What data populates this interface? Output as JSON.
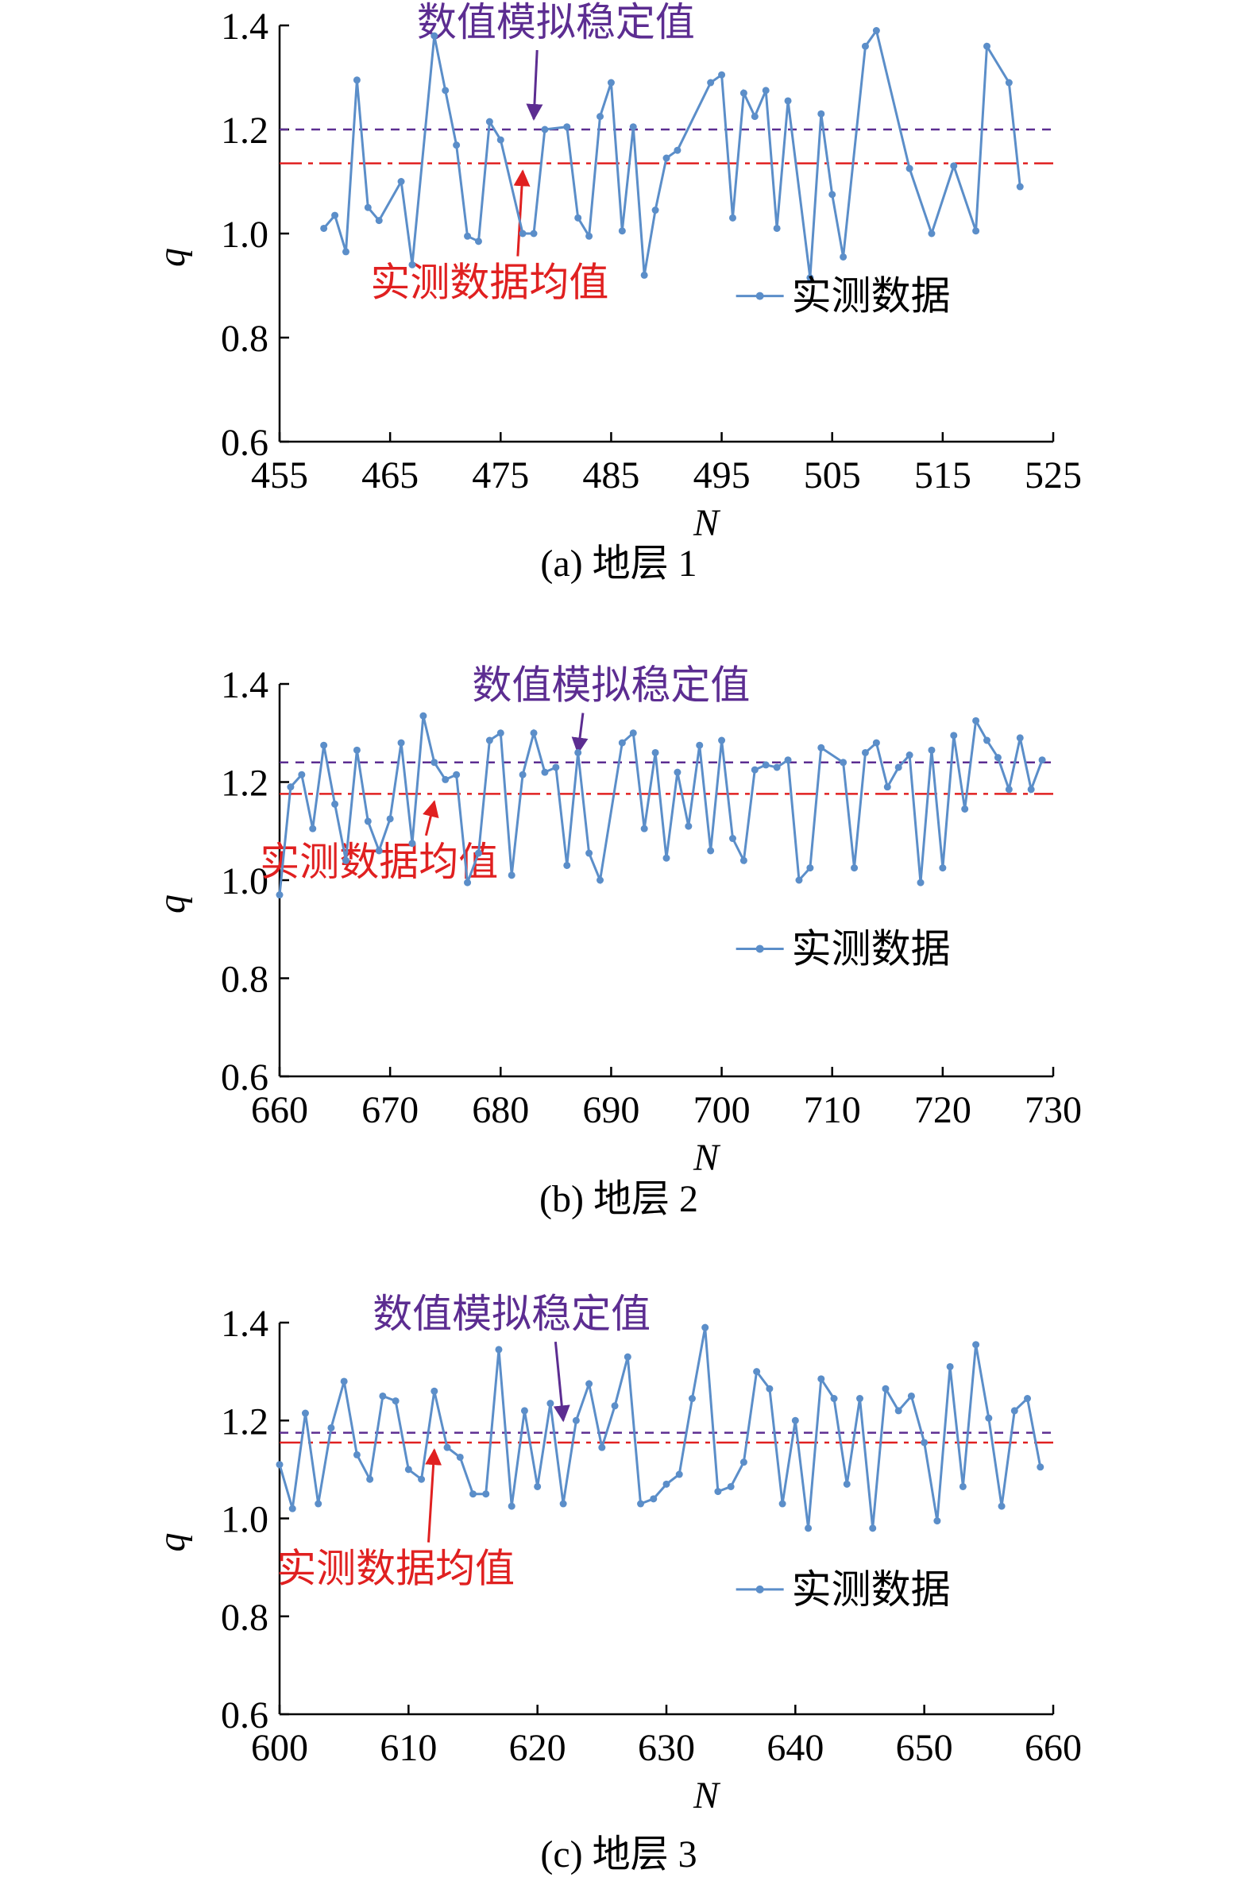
{
  "chart_data": [
    {
      "type": "line",
      "caption": "(a) 地层 1",
      "xlabel": "N",
      "ylabel": "q",
      "xlim": [
        455,
        525
      ],
      "ylim": [
        0.6,
        1.4
      ],
      "xticks": [
        455,
        465,
        475,
        485,
        495,
        505,
        515,
        525
      ],
      "yticks": [
        0.6,
        0.8,
        1.0,
        1.2,
        1.4
      ],
      "ytick_labels": [
        "0.6",
        "0.8",
        "1.0",
        "1.2",
        "1.4"
      ],
      "legend": "实测数据",
      "legend_position": "right",
      "colors": {
        "series": "#5b8ec9",
        "sim": "#5c2d91",
        "mean": "#e02020"
      },
      "hlines": [
        {
          "label": "数值模拟稳定值",
          "value": 1.2,
          "style": "dashed",
          "color": "#5c2d91",
          "annotation_x": 480,
          "annotation_y": 1.38,
          "arrow_to_x": 478,
          "arrow_to_y": 1.22
        },
        {
          "label": "实测数据均值",
          "value": 1.135,
          "style": "dashdot",
          "color": "#e02020",
          "annotation_x": 474,
          "annotation_y": 0.88,
          "arrow_to_x": 477,
          "arrow_to_y": 1.12
        }
      ],
      "series": [
        {
          "name": "实测数据",
          "x": [
            459,
            460,
            461,
            462,
            463,
            464,
            466,
            467,
            469,
            470,
            471,
            472,
            473,
            474,
            475,
            477,
            478,
            479,
            481,
            482,
            483,
            484,
            485,
            486,
            487,
            488,
            489,
            490,
            491,
            494,
            495,
            496,
            497,
            498,
            499,
            500,
            501,
            503,
            504,
            505,
            506,
            508,
            509,
            512,
            514,
            516,
            518,
            519,
            521,
            522
          ],
          "y": [
            1.01,
            1.035,
            0.965,
            1.295,
            1.05,
            1.025,
            1.1,
            0.94,
            1.38,
            1.275,
            1.17,
            0.995,
            0.985,
            1.215,
            1.18,
            1.0,
            1.0,
            1.2,
            1.205,
            1.03,
            0.995,
            1.225,
            1.29,
            1.005,
            1.205,
            0.92,
            1.045,
            1.145,
            1.16,
            1.29,
            1.305,
            1.03,
            1.27,
            1.225,
            1.275,
            1.01,
            1.255,
            0.915,
            1.23,
            1.075,
            0.955,
            1.36,
            1.39,
            1.125,
            1.0,
            1.13,
            1.005,
            1.36,
            1.29,
            1.09
          ]
        }
      ]
    },
    {
      "type": "line",
      "caption": "(b) 地层 2",
      "xlabel": "N",
      "ylabel": "q",
      "xlim": [
        660,
        730
      ],
      "ylim": [
        0.6,
        1.4
      ],
      "xticks": [
        660,
        670,
        680,
        690,
        700,
        710,
        720,
        730
      ],
      "yticks": [
        0.6,
        0.8,
        1.0,
        1.2,
        1.4
      ],
      "ytick_labels": [
        "0.6",
        "0.8",
        "1.0",
        "1.2",
        "1.4"
      ],
      "legend": "实测数据",
      "legend_position": "right",
      "colors": {
        "series": "#5b8ec9",
        "sim": "#5c2d91",
        "mean": "#e02020"
      },
      "hlines": [
        {
          "label": "数值模拟稳定值",
          "value": 1.24,
          "style": "dashed",
          "color": "#5c2d91",
          "annotation_x": 690,
          "annotation_y": 1.37,
          "arrow_to_x": 687,
          "arrow_to_y": 1.26
        },
        {
          "label": "实测数据均值",
          "value": 1.176,
          "style": "dashdot",
          "color": "#e02020",
          "annotation_x": 669,
          "annotation_y": 1.01,
          "arrow_to_x": 674,
          "arrow_to_y": 1.16
        }
      ],
      "series": [
        {
          "name": "实测数据",
          "x": [
            660,
            661,
            662,
            663,
            664,
            665,
            666,
            667,
            668,
            669,
            670,
            671,
            672,
            673,
            674,
            675,
            676,
            677,
            678,
            679,
            680,
            681,
            682,
            683,
            684,
            685,
            686,
            687,
            688,
            689,
            691,
            692,
            693,
            694,
            695,
            696,
            697,
            698,
            699,
            700,
            701,
            702,
            703,
            704,
            705,
            706,
            707,
            708,
            709,
            711,
            712,
            713,
            714,
            715,
            716,
            717,
            718,
            719,
            720,
            721,
            722,
            723,
            724,
            725,
            726,
            727,
            728,
            729
          ],
          "y": [
            0.97,
            1.19,
            1.215,
            1.105,
            1.275,
            1.155,
            1.04,
            1.265,
            1.12,
            1.06,
            1.125,
            1.28,
            1.075,
            1.335,
            1.24,
            1.205,
            1.215,
            0.995,
            1.055,
            1.285,
            1.3,
            1.01,
            1.215,
            1.3,
            1.22,
            1.23,
            1.03,
            1.26,
            1.055,
            1.0,
            1.28,
            1.3,
            1.105,
            1.26,
            1.045,
            1.22,
            1.11,
            1.275,
            1.06,
            1.285,
            1.085,
            1.04,
            1.225,
            1.235,
            1.23,
            1.245,
            1.0,
            1.025,
            1.27,
            1.24,
            1.025,
            1.26,
            1.28,
            1.19,
            1.23,
            1.255,
            0.995,
            1.265,
            1.025,
            1.295,
            1.145,
            1.325,
            1.285,
            1.25,
            1.185,
            1.29,
            1.185,
            1.245
          ]
        }
      ]
    },
    {
      "type": "line",
      "caption": "(c) 地层 3",
      "xlabel": "N",
      "ylabel": "q",
      "xlim": [
        600,
        660
      ],
      "ylim": [
        0.6,
        1.4
      ],
      "xticks": [
        600,
        610,
        620,
        630,
        640,
        650,
        660
      ],
      "yticks": [
        0.6,
        0.8,
        1.0,
        1.2,
        1.4
      ],
      "ytick_labels": [
        "0.6",
        "0.8",
        "1.0",
        "1.2",
        "1.4"
      ],
      "legend": "实测数据",
      "legend_position": "right",
      "colors": {
        "series": "#5b8ec9",
        "sim": "#5c2d91",
        "mean": "#e02020"
      },
      "hlines": [
        {
          "label": "数值模拟稳定值",
          "value": 1.175,
          "style": "dashed",
          "color": "#5c2d91",
          "annotation_x": 618,
          "annotation_y": 1.39,
          "arrow_to_x": 622,
          "arrow_to_y": 1.2
        },
        {
          "label": "实测数据均值",
          "value": 1.155,
          "style": "dashdot",
          "color": "#e02020",
          "annotation_x": 609,
          "annotation_y": 0.87,
          "arrow_to_x": 612,
          "arrow_to_y": 1.14
        }
      ],
      "series": [
        {
          "name": "实测数据",
          "x": [
            600,
            601,
            602,
            603,
            604,
            605,
            606,
            607,
            608,
            609,
            610,
            611,
            612,
            613,
            614,
            615,
            616,
            617,
            618,
            619,
            620,
            621,
            622,
            623,
            624,
            625,
            626,
            627,
            628,
            629,
            630,
            631,
            632,
            633,
            634,
            635,
            636,
            637,
            638,
            639,
            640,
            641,
            642,
            643,
            644,
            645,
            646,
            647,
            648,
            649,
            650,
            651,
            652,
            653,
            654,
            655,
            656,
            657,
            658,
            659
          ],
          "y": [
            1.11,
            1.02,
            1.215,
            1.03,
            1.185,
            1.28,
            1.13,
            1.08,
            1.25,
            1.24,
            1.1,
            1.08,
            1.26,
            1.145,
            1.125,
            1.05,
            1.05,
            1.345,
            1.025,
            1.22,
            1.065,
            1.235,
            1.03,
            1.2,
            1.275,
            1.145,
            1.23,
            1.33,
            1.03,
            1.04,
            1.07,
            1.09,
            1.245,
            1.39,
            1.055,
            1.065,
            1.115,
            1.3,
            1.265,
            1.03,
            1.2,
            0.98,
            1.285,
            1.245,
            1.07,
            1.245,
            0.98,
            1.265,
            1.22,
            1.25,
            1.155,
            0.995,
            1.31,
            1.065,
            1.355,
            1.205,
            1.025,
            1.22,
            1.245,
            1.105
          ]
        }
      ]
    }
  ]
}
